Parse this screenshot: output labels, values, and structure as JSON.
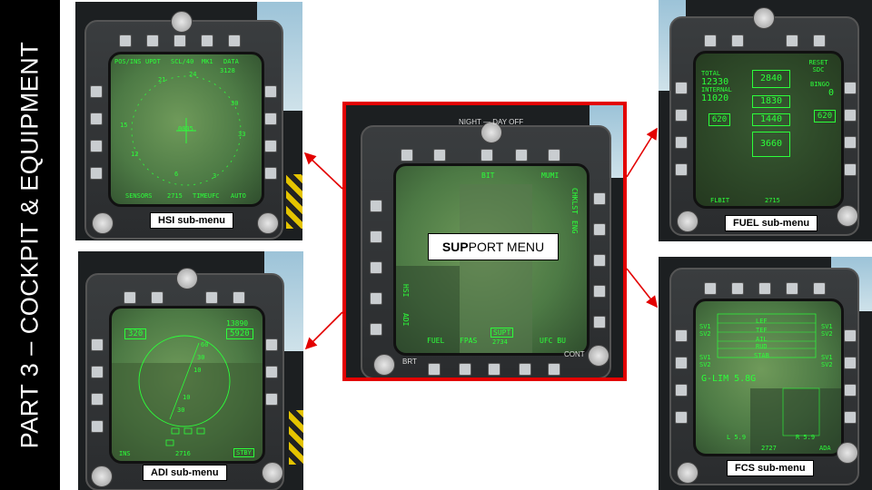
{
  "sidebar": {
    "title": "PART 3 – COCKPIT & EQUIPMENT"
  },
  "panels": {
    "hsi": {
      "label": "HSI sub-menu",
      "top_options": [
        "POS/INS",
        "UPDT",
        "SCL/40",
        "MK1",
        "DATA"
      ],
      "bottom_options": [
        "SENSORS",
        "2715",
        "TIMEUFC",
        "AUTO"
      ],
      "readouts": [
        "21",
        "24",
        "3128",
        "30",
        "15",
        "12",
        "6",
        "3",
        "33",
        "0005"
      ]
    },
    "adi": {
      "label": "ADI sub-menu",
      "speed": "320",
      "altitude_top": "13890",
      "altitude": "5920",
      "bottom_left": "INS",
      "bottom_mid": "2716",
      "bottom_right": "STBY",
      "pitch_ticks": [
        "60",
        "30",
        "10",
        "10",
        "30"
      ]
    },
    "support": {
      "label_bold": "SUP",
      "label_rest": "PORT MENU",
      "top_options": [
        "BIT",
        "MUMI"
      ],
      "right_options": [
        "CHKLST",
        "ENG"
      ],
      "left_options": [
        "HSI",
        "ADI"
      ],
      "bottom_options": [
        "FUEL",
        "FPAS",
        "SUPT",
        "UFC BU"
      ],
      "bottom_code": "2734",
      "knob_label": "NIGHT — DAY OFF",
      "brt": "BRT",
      "cont": "CONT"
    },
    "fuel": {
      "label": "FUEL sub-menu",
      "total_label": "TOTAL",
      "total": "12330",
      "internal_label": "INTERNAL",
      "internal": "11020",
      "reset": "RESET SDC",
      "bingo_label": "BINGO",
      "bingo": "0",
      "tank1": "2840",
      "tank2": "1830",
      "tank3": "1440",
      "tank4": "3660",
      "left_wing": "620",
      "right_wing": "620",
      "bottom_left": "FLBIT",
      "bottom_mid": "2715"
    },
    "fcs": {
      "label": "FCS sub-menu",
      "rows": [
        "LEF",
        "TEF",
        "AIL",
        "RUD",
        "STAB"
      ],
      "glim": "G-LIM 5.8G",
      "sv_labels": [
        "SV1",
        "SV2"
      ],
      "bottom_left": "L 5.9",
      "bottom_right": "R 5.9",
      "bottom_mid": "2727",
      "bottom_right2": "ADA"
    }
  }
}
